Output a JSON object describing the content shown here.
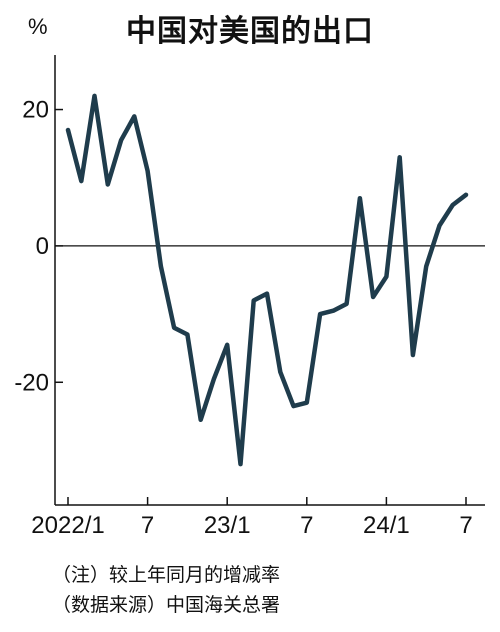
{
  "header": {
    "title": "中国对美国的出口",
    "unit": "%"
  },
  "notes": {
    "note": "（注）较上年同月的增减率",
    "source": "（数据来源）中国海关总署"
  },
  "colors": {
    "line": "#1f3c4c",
    "axis": "#111111"
  },
  "chart_data": {
    "type": "line",
    "title": "中国对美国的出口",
    "ylabel": "%",
    "xlabel": "",
    "ylim": [
      -38,
      28
    ],
    "yticks": [
      20,
      0,
      -20
    ],
    "ytick_labels": [
      "20",
      "0",
      "-20"
    ],
    "xticks": [
      {
        "month": "2022-01",
        "label": "2022/1"
      },
      {
        "month": "2022-07",
        "label": "7"
      },
      {
        "month": "2023-01",
        "label": "23/1"
      },
      {
        "month": "2023-07",
        "label": "7"
      },
      {
        "month": "2024-01",
        "label": "24/1"
      },
      {
        "month": "2024-07",
        "label": "7"
      }
    ],
    "grid": false,
    "zero_line": true,
    "x": [
      "2022-01",
      "2022-02",
      "2022-03",
      "2022-04",
      "2022-05",
      "2022-06",
      "2022-07",
      "2022-08",
      "2022-09",
      "2022-10",
      "2022-11",
      "2022-12",
      "2023-01",
      "2023-02",
      "2023-03",
      "2023-04",
      "2023-05",
      "2023-06",
      "2023-07",
      "2023-08",
      "2023-09",
      "2023-10",
      "2023-11",
      "2023-12",
      "2024-01",
      "2024-02",
      "2024-03",
      "2024-04",
      "2024-05",
      "2024-06",
      "2024-07"
    ],
    "series": [
      {
        "values": [
          17,
          9.5,
          22,
          9,
          15.5,
          19,
          11,
          -3,
          -12,
          -13,
          -25.5,
          -19.5,
          -14.5,
          -32,
          -8,
          -7,
          -18.5,
          -23.5,
          -23,
          -10,
          -9.5,
          -8.5,
          7,
          -7.5,
          -4.5,
          13,
          -16,
          -3,
          3,
          6,
          7.5
        ]
      }
    ]
  }
}
